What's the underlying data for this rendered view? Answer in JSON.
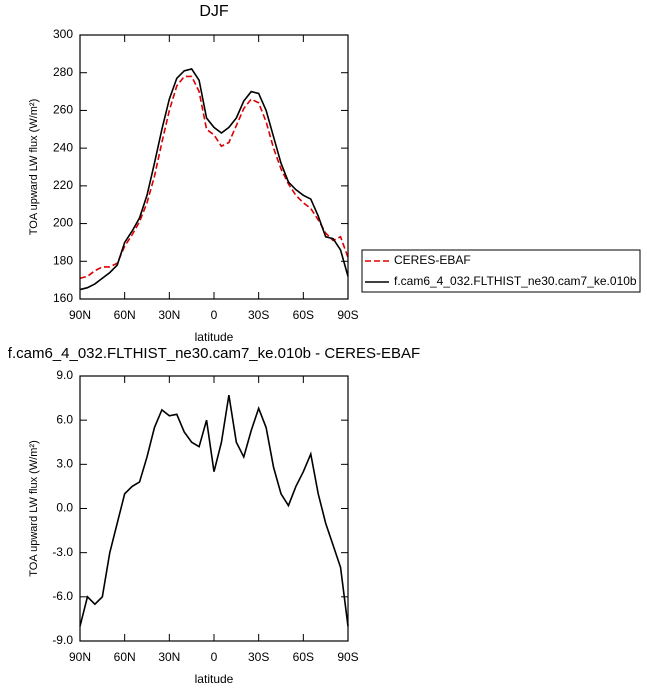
{
  "chart_data": [
    {
      "type": "line",
      "title": "DJF",
      "xlabel": "latitude",
      "ylabel": "TOA upward LW flux (W/m²)",
      "x": [
        90,
        85,
        80,
        75,
        70,
        65,
        60,
        55,
        50,
        45,
        40,
        35,
        30,
        25,
        20,
        15,
        10,
        5,
        0,
        -5,
        -10,
        -15,
        -20,
        -25,
        -30,
        -35,
        -40,
        -45,
        -50,
        -55,
        -60,
        -65,
        -70,
        -75,
        -80,
        -85,
        -90
      ],
      "series": [
        {
          "name": "CERES-EBAF",
          "color": "#dd0000",
          "linestyle": "dashed",
          "values": [
            171,
            172,
            175,
            177,
            177,
            179,
            188,
            194,
            201,
            211,
            225,
            243,
            260,
            273,
            278,
            278,
            270,
            250,
            247,
            241,
            243,
            252,
            261,
            266,
            264,
            254,
            240,
            229,
            221,
            215,
            211,
            208,
            202,
            195,
            191,
            193,
            182
          ]
        },
        {
          "name": "f.cam6_4_032.FLTHIST_ne30.cam7_ke.010b",
          "color": "#000000",
          "linestyle": "solid",
          "values": [
            165,
            166,
            168,
            171,
            174,
            178,
            190,
            196,
            203,
            215,
            232,
            250,
            266,
            277,
            281,
            282,
            276,
            256,
            251,
            248,
            251,
            256,
            265,
            270,
            269,
            260,
            246,
            232,
            222,
            218,
            215,
            213,
            204,
            193,
            192,
            186,
            172
          ]
        }
      ],
      "xlim": [
        90,
        -90
      ],
      "xticks": [
        {
          "value": 90,
          "label": "90N"
        },
        {
          "value": 60,
          "label": "60N"
        },
        {
          "value": 30,
          "label": "30N"
        },
        0,
        {
          "value": -30,
          "label": "30S"
        },
        {
          "value": -60,
          "label": "60S"
        },
        {
          "value": -90,
          "label": "90S"
        }
      ],
      "ylim": [
        160,
        300
      ],
      "yticks": [
        160,
        180,
        200,
        220,
        240,
        260,
        280,
        300
      ],
      "legend": "right"
    },
    {
      "type": "line",
      "title": "f.cam6_4_032.FLTHIST_ne30.cam7_ke.010b - CERES-EBAF",
      "xlabel": "latitude",
      "ylabel": "TOA upward LW flux (W/m²)",
      "x": [
        90,
        85,
        80,
        75,
        70,
        65,
        60,
        55,
        50,
        45,
        40,
        35,
        30,
        25,
        20,
        15,
        10,
        5,
        0,
        -5,
        -10,
        -15,
        -20,
        -25,
        -30,
        -35,
        -40,
        -45,
        -50,
        -55,
        -60,
        -65,
        -70,
        -75,
        -80,
        -85,
        -90
      ],
      "series": [
        {
          "color": "#000000",
          "linestyle": "solid",
          "values": [
            -8,
            -6,
            -6.5,
            -6,
            -3,
            -1,
            1,
            1.5,
            1.8,
            3.5,
            5.5,
            6.7,
            6.3,
            6.4,
            5.2,
            4.5,
            4.2,
            6,
            2.5,
            4.5,
            7.7,
            4.5,
            3.5,
            5.3,
            6.8,
            5.5,
            2.8,
            1,
            0.2,
            1.5,
            2.5,
            3.7,
            1,
            -1,
            -2.5,
            -4,
            -8
          ]
        }
      ],
      "xlim": [
        90,
        -90
      ],
      "xticks": [
        {
          "value": 90,
          "label": "90N"
        },
        {
          "value": 60,
          "label": "60N"
        },
        {
          "value": 30,
          "label": "30N"
        },
        0,
        {
          "value": -30,
          "label": "30S"
        },
        {
          "value": -60,
          "label": "60S"
        },
        {
          "value": -90,
          "label": "90S"
        }
      ],
      "ylim": [
        -9,
        9
      ],
      "yticks": [
        {
          "value": -9,
          "label": "-9.0"
        },
        {
          "value": -6,
          "label": "-6.0"
        },
        {
          "value": -3,
          "label": "-3.0"
        },
        {
          "value": 0,
          "label": "0.0"
        },
        {
          "value": 3,
          "label": "3.0"
        },
        {
          "value": 6,
          "label": "6.0"
        },
        {
          "value": 9,
          "label": "9.0"
        }
      ]
    }
  ]
}
